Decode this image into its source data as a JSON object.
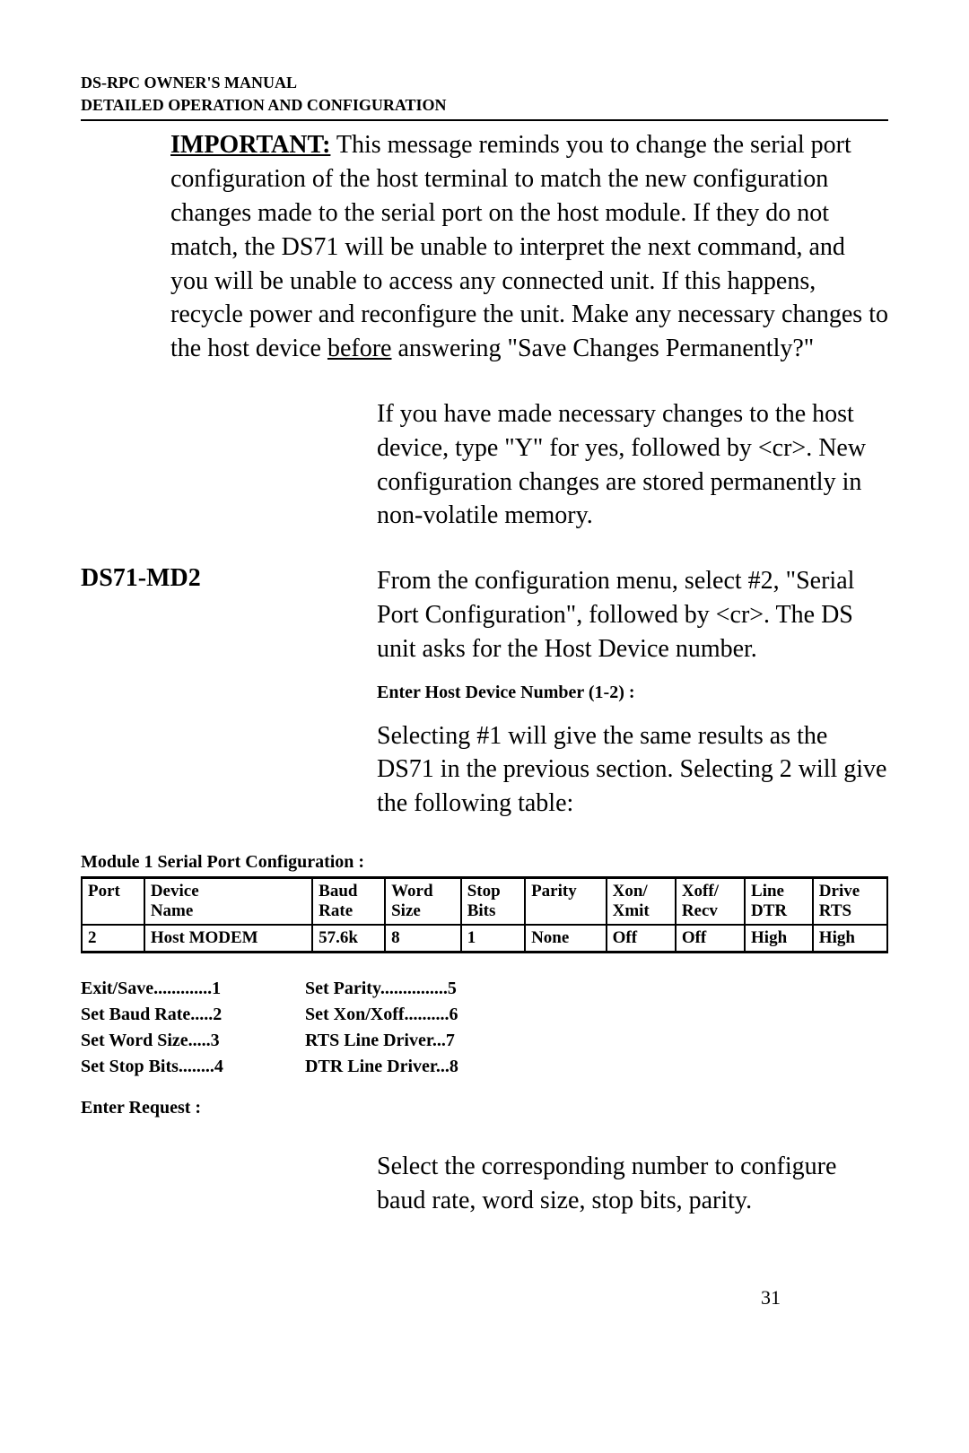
{
  "header": {
    "line1": "DS-RPC OWNER'S MANUAL",
    "line2": "DETAILED OPERATION AND CONFIGURATION"
  },
  "important": {
    "label": "IMPORTANT:",
    "text_before_underline": " This message reminds you to change the serial port configuration of the host terminal to match the new configuration changes made to the serial port on the host module.  If they do not match, the DS71 will be unable to interpret the next command, and you will be unable to access any connected unit.  If this happens, recycle power and reconfigure the unit.  Make any necessary changes to the host device ",
    "underline_word": "before",
    "text_after_underline": " answering \"Save Changes Permanently?\""
  },
  "para_yes": "If you have made necessary changes to the host device, type \"Y\" for yes, followed by <cr>.  New configuration changes are stored permanently in non-volatile memory.",
  "section": {
    "heading": "DS71-MD2",
    "text": "From the configuration menu, select #2, \"Serial Port Configuration\", followed by <cr>. The DS unit asks for the Host Device number."
  },
  "prompt_host": "Enter Host Device Number (1-2) :",
  "para_select": "Selecting #1 will give the same results as the DS71 in the previous section. Selecting 2 will give the following table:",
  "table": {
    "title": "Module  1 Serial Port Configuration :",
    "headers": [
      [
        "Port",
        ""
      ],
      [
        "Device",
        "Name"
      ],
      [
        "Baud",
        "Rate"
      ],
      [
        "Word",
        "Size"
      ],
      [
        "Stop",
        "Bits"
      ],
      [
        "Parity",
        ""
      ],
      [
        "Xon/",
        "Xmit"
      ],
      [
        "Xoff/",
        "Recv"
      ],
      [
        "Line",
        "DTR"
      ],
      [
        "Drive",
        "RTS"
      ]
    ],
    "row": [
      "2",
      "Host MODEM",
      "57.6k",
      "8",
      "1",
      "None",
      "Off",
      "Off",
      "High",
      "High"
    ]
  },
  "menu": {
    "col1": [
      "Exit/Save.............1",
      "Set Baud Rate.....2",
      "Set Word Size.....3",
      "Set Stop Bits........4"
    ],
    "col2": [
      "Set Parity...............5",
      "Set Xon/Xoff..........6",
      "RTS Line Driver...7",
      "DTR Line Driver...8"
    ]
  },
  "enter_request": "Enter Request :",
  "para_bottom": "Select the corresponding number to configure baud rate, word size, stop bits, parity.",
  "page_number": "31"
}
